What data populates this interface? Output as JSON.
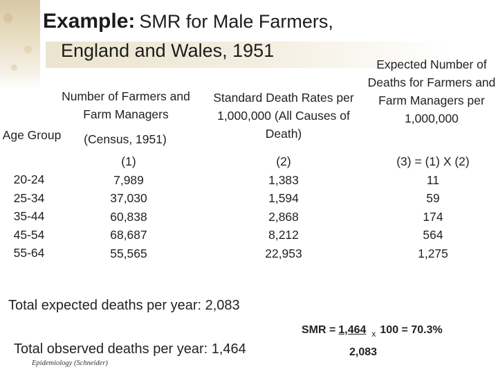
{
  "title": {
    "lead": "Example:",
    "rest": "SMR for Male Farmers,",
    "line2": "England and Wales, 1951"
  },
  "headers": {
    "age": "Age Group",
    "col1": "Number of Farmers and Farm Managers",
    "col1_sub": "(Census, 1951)",
    "col2": "Standard Death Rates per 1,000,000 (All Causes of Death)",
    "col3": "Expected Number of Deaths for Farmers and Farm Managers per 1,000,000"
  },
  "table": {
    "formula_row": [
      "(1)",
      "(2)",
      "(3) = (1) X (2)"
    ],
    "age_groups": [
      "20-24",
      "25-34",
      "35-44",
      "45-54",
      "55-64"
    ],
    "farmers": [
      "7,989",
      "37,030",
      "60,838",
      "68,687",
      "55,565"
    ],
    "death_rates": [
      "1,383",
      "1,594",
      "2,868",
      "8,212",
      "22,953"
    ],
    "expected": [
      "11",
      "59",
      "174",
      "564",
      "1,275"
    ]
  },
  "totals": {
    "expected": "Total expected deaths per year: 2,083",
    "observed": "Total observed deaths per year: 1,464"
  },
  "smr": {
    "label": "SMR =",
    "numerator": "1,464",
    "times": "x",
    "rest": "100 = 70.3%",
    "denominator": "2,083"
  },
  "footer": "Epidemiology (Schneider)"
}
